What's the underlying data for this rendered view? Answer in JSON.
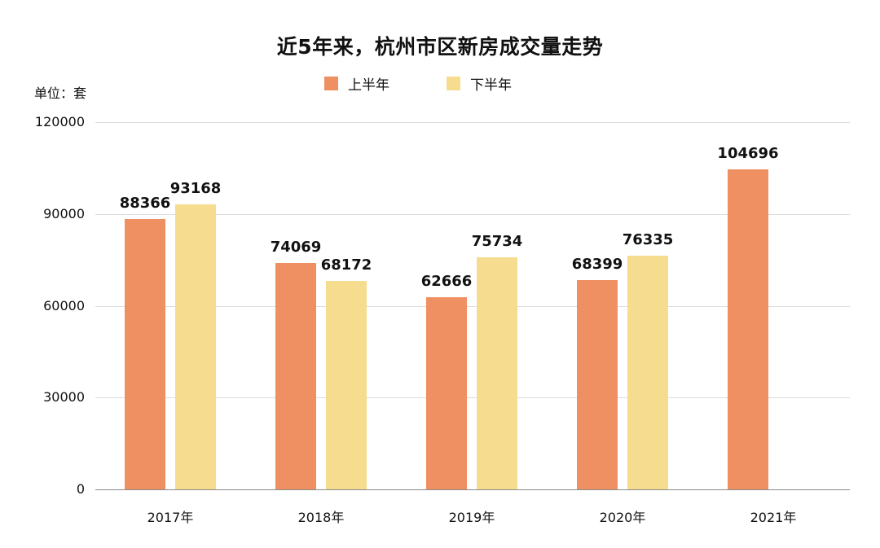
{
  "title": "近5年来，杭州市区新房成交量走势",
  "unit_label": "单位：套",
  "legend": [
    {
      "label": "上半年",
      "color": "#EE9061"
    },
    {
      "label": "下半年",
      "color": "#F6DC8E"
    }
  ],
  "y_ticks": [
    "120000",
    "90000",
    "60000",
    "30000",
    "0"
  ],
  "x_labels": [
    "2017年",
    "2018年",
    "2019年",
    "2020年",
    "2021年"
  ],
  "chart_data": {
    "type": "bar",
    "title": "近5年来，杭州市区新房成交量走势",
    "xlabel": "",
    "ylabel": "单位：套",
    "categories": [
      "2017年",
      "2018年",
      "2019年",
      "2020年",
      "2021年"
    ],
    "series": [
      {
        "name": "上半年",
        "color": "#EE9061",
        "values": [
          88366,
          74069,
          62666,
          68399,
          104696
        ]
      },
      {
        "name": "下半年",
        "color": "#F6DC8E",
        "values": [
          93168,
          68172,
          75734,
          76335,
          null
        ]
      }
    ],
    "ylim": [
      0,
      120000
    ],
    "yticks": [
      0,
      30000,
      60000,
      90000,
      120000
    ],
    "grid": true,
    "legend_position": "top",
    "data_labels": true
  }
}
